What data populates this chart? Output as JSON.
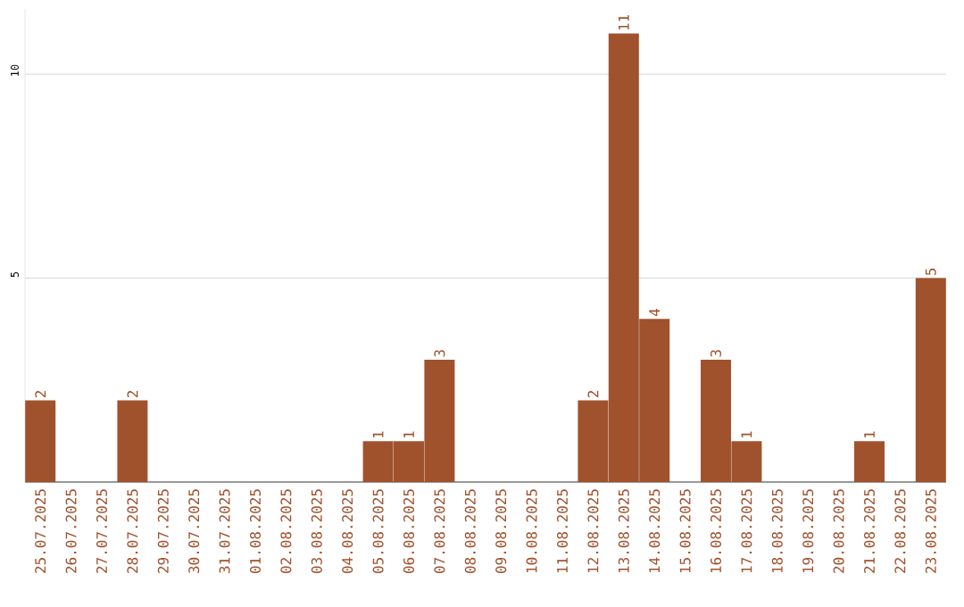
{
  "chart_data": {
    "type": "bar",
    "categories": [
      "25.07.2025",
      "26.07.2025",
      "27.07.2025",
      "28.07.2025",
      "29.07.2025",
      "30.07.2025",
      "31.07.2025",
      "01.08.2025",
      "02.08.2025",
      "03.08.2025",
      "04.08.2025",
      "05.08.2025",
      "06.08.2025",
      "07.08.2025",
      "08.08.2025",
      "09.08.2025",
      "10.08.2025",
      "11.08.2025",
      "12.08.2025",
      "13.08.2025",
      "14.08.2025",
      "15.08.2025",
      "16.08.2025",
      "17.08.2025",
      "18.08.2025",
      "19.08.2025",
      "20.08.2025",
      "21.08.2025",
      "22.08.2025",
      "23.08.2025"
    ],
    "values": [
      2,
      0,
      0,
      2,
      0,
      0,
      0,
      0,
      0,
      0,
      0,
      1,
      1,
      3,
      0,
      0,
      0,
      0,
      2,
      11,
      4,
      0,
      3,
      1,
      0,
      0,
      0,
      1,
      0,
      5
    ],
    "value_labels": [
      "2",
      null,
      null,
      "2",
      null,
      null,
      null,
      null,
      null,
      null,
      null,
      "1",
      "1",
      "3",
      null,
      null,
      null,
      null,
      "2",
      "11",
      "4",
      null,
      "3",
      "1",
      null,
      null,
      null,
      "1",
      null,
      "5"
    ],
    "color": "#a0522d",
    "ylim": [
      0,
      11.6
    ],
    "yticks": [
      5,
      10
    ],
    "grid": "y"
  }
}
